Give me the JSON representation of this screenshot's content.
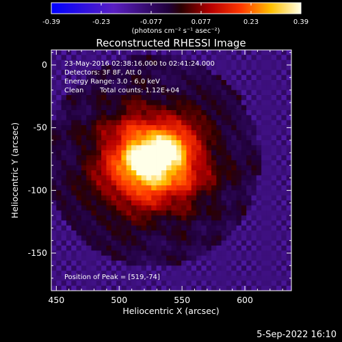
{
  "title": "Reconstructed RHESSI Image",
  "colorbar": {
    "ticks": [
      "-0.39",
      "-0.23",
      "-0.077",
      "0.077",
      "0.23",
      "0.39"
    ],
    "units_label": "(photons cm⁻² s⁻¹ asec⁻²)",
    "min": -0.39,
    "max": 0.39
  },
  "annotations": {
    "time_range": "23-May-2016 02:38:16.000 to 02:41:24.000",
    "detectors": "Detectors: 3F 8F, Att 0",
    "energy_range": "Energy Range: 3.0 - 6.0 keV",
    "algorithm": "Clean",
    "total_counts": "Total counts: 1.12E+04",
    "peak_position": "Position of Peak = [519,-74]"
  },
  "axes": {
    "xlabel": "Heliocentric X (arcsec)",
    "ylabel": "Heliocentric Y (arcsec)",
    "xticks": [
      450,
      500,
      550,
      600
    ],
    "yticks": [
      0,
      -50,
      -100,
      -150
    ],
    "xlim": [
      446,
      637
    ],
    "ylim": [
      -180,
      12
    ]
  },
  "image": {
    "peak": [
      519,
      -74
    ],
    "colormap": "rhessi-blue-purple-black-red-yellow-white"
  },
  "footer": {
    "date": "5-Sep-2022 16:10"
  }
}
